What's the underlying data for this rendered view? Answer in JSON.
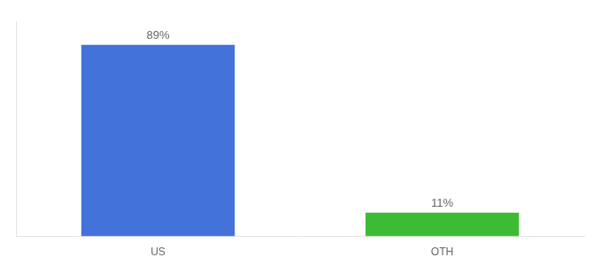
{
  "chart_data": {
    "type": "bar",
    "categories": [
      "US",
      "OTH"
    ],
    "values": [
      89,
      11
    ],
    "value_labels": [
      "89%",
      "11%"
    ],
    "colors": [
      "#4472db",
      "#3dbb35"
    ],
    "ylim": [
      0,
      100
    ],
    "grid": false,
    "data_labels": true,
    "tick_labels": "x"
  }
}
